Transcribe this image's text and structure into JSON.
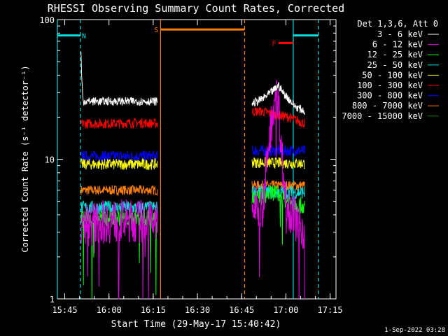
{
  "chart_data": {
    "type": "line",
    "title": "RHESSI Observing Summary Count Rates, Corrected",
    "xlabel": "Start Time (29-May-17 15:40:42)",
    "ylabel": "Corrected Count Rate (s⁻¹ detector⁻¹)",
    "footer": "1-Sep-2022 03:28",
    "yscale": "log",
    "ylim": [
      1,
      100
    ],
    "xlim_min": [
      42.5,
      137
    ],
    "x_unit": "minutes after 15:00 on 29-May-17",
    "yticks": [
      {
        "v": 1,
        "label": "1"
      },
      {
        "v": 10,
        "label": "10"
      },
      {
        "v": 100,
        "label": "100"
      }
    ],
    "xticks": [
      {
        "v": 45,
        "label": "15:45"
      },
      {
        "v": 60,
        "label": "16:00"
      },
      {
        "v": 75,
        "label": "16:15"
      },
      {
        "v": 90,
        "label": "16:30"
      },
      {
        "v": 105,
        "label": "16:45"
      },
      {
        "v": 120,
        "label": "17:00"
      },
      {
        "v": 135,
        "label": "17:15"
      }
    ],
    "legend": {
      "header": "Det 1,3,6, Att 0",
      "position": "right"
    },
    "series": [
      {
        "name": "3 - 6 keV",
        "color": "#000000",
        "level": 25.5,
        "jitter": 0.03,
        "segs": [
          [
            50.5,
            76.5
          ],
          [
            108.5,
            126.5
          ]
        ],
        "points": [
          [
            50.5,
            60
          ],
          [
            50.7,
            40
          ],
          [
            51.2,
            26
          ],
          [
            60,
            26
          ],
          [
            70,
            26
          ],
          [
            76.5,
            26
          ],
          [
            108.5,
            25
          ],
          [
            112,
            27
          ],
          [
            114,
            29
          ],
          [
            116.5,
            32
          ],
          [
            117.5,
            34
          ],
          [
            119,
            30
          ],
          [
            121,
            27
          ],
          [
            123,
            24
          ],
          [
            126.5,
            22
          ]
        ]
      },
      {
        "name": "6 - 12 keV",
        "color": "#e000e0",
        "level": 3.5,
        "jitter": 0.16,
        "spikes": true,
        "segs": [
          [
            50.5,
            76.5
          ],
          [
            108.5,
            126.5
          ]
        ],
        "points": [
          [
            50.5,
            2
          ],
          [
            51,
            3.4
          ],
          [
            60,
            3.6
          ],
          [
            70,
            3.6
          ],
          [
            76.5,
            3.5
          ],
          [
            108.5,
            4.5
          ],
          [
            112,
            4.5
          ],
          [
            113,
            7
          ],
          [
            115,
            18
          ],
          [
            116.5,
            30
          ],
          [
            117.5,
            25
          ],
          [
            118.5,
            12
          ],
          [
            119.5,
            6
          ],
          [
            121,
            4.5
          ],
          [
            124,
            3.5
          ],
          [
            126.5,
            3.1
          ]
        ]
      },
      {
        "name": "12 - 25 keV",
        "color": "#00ff00",
        "level": 3.8,
        "jitter": 0.06,
        "spikes": true,
        "segs": [
          [
            50.5,
            76.5
          ],
          [
            108.5,
            126.5
          ]
        ],
        "points": [
          [
            50.5,
            3.8
          ],
          [
            60,
            3.8
          ],
          [
            70,
            3.8
          ],
          [
            76.5,
            3.8
          ],
          [
            108.5,
            5.2
          ],
          [
            112,
            5.4
          ],
          [
            116,
            5.8
          ],
          [
            119,
            5.2
          ],
          [
            123,
            4.8
          ],
          [
            126.5,
            4.6
          ]
        ]
      },
      {
        "name": "25 - 50 keV",
        "color": "#00e0e0",
        "level": 4.5,
        "jitter": 0.05,
        "segs": [
          [
            50.5,
            76.5
          ],
          [
            108.5,
            126.5
          ]
        ],
        "points": [
          [
            50.5,
            4.5
          ],
          [
            76.5,
            4.5
          ],
          [
            108.5,
            5.8
          ],
          [
            126.5,
            5.8
          ]
        ]
      },
      {
        "name": "50 - 100 keV",
        "color": "#ffff00",
        "level": 9.2,
        "jitter": 0.04,
        "segs": [
          [
            50.5,
            76.5
          ],
          [
            108.5,
            126.5
          ]
        ],
        "points": [
          [
            50.5,
            9.2
          ],
          [
            76.5,
            9.2
          ],
          [
            108.5,
            9.5
          ],
          [
            126.5,
            9.3
          ]
        ]
      },
      {
        "name": "100 - 300 keV",
        "color": "#ff0000",
        "level": 18,
        "jitter": 0.035,
        "segs": [
          [
            50.5,
            76.5
          ],
          [
            108.5,
            126.5
          ]
        ],
        "points": [
          [
            50.5,
            18
          ],
          [
            60,
            18
          ],
          [
            70,
            18.2
          ],
          [
            76.5,
            18
          ],
          [
            108.5,
            22
          ],
          [
            112,
            22
          ],
          [
            116,
            21
          ],
          [
            121,
            20
          ],
          [
            126.5,
            18
          ]
        ]
      },
      {
        "name": "300 - 800 keV",
        "color": "#0000ff",
        "level": 10.5,
        "jitter": 0.04,
        "segs": [
          [
            50.5,
            76.5
          ],
          [
            108.5,
            126.5
          ]
        ],
        "points": [
          [
            50.5,
            10.5
          ],
          [
            76.5,
            10.5
          ],
          [
            108.5,
            11.5
          ],
          [
            126.5,
            11.5
          ]
        ]
      },
      {
        "name": "800 - 7000 keV",
        "color": "#ff7f00",
        "level": 6,
        "jitter": 0.035,
        "segs": [
          [
            50.5,
            76.5
          ],
          [
            108.5,
            126.5
          ]
        ],
        "points": [
          [
            50.5,
            6
          ],
          [
            76.5,
            6
          ],
          [
            108.5,
            6.5
          ],
          [
            126.5,
            6.5
          ]
        ]
      },
      {
        "name": "7000 - 15000 keV",
        "color": "#008000",
        "level": 5,
        "jitter": 0.02,
        "segs": [
          [
            50.5,
            76.5
          ],
          [
            108.5,
            126.5
          ]
        ],
        "points": [
          [
            50.5,
            5
          ],
          [
            76.5,
            5
          ],
          [
            108.5,
            5.2
          ],
          [
            126.5,
            5.2
          ]
        ]
      }
    ],
    "intervals": [
      {
        "label": "N",
        "color": "#00e0e0",
        "start": 42.5,
        "end": 50.3,
        "label_x": 51.5,
        "y": 77
      },
      {
        "label": "S",
        "color": "#ff7f00",
        "start": 77.5,
        "end": 106,
        "label_x": 76,
        "y": 85
      },
      {
        "label": "F",
        "color": "#ff0000",
        "start": 117.5,
        "end": 122.5,
        "label_x": 116,
        "y": 68
      },
      {
        "label": "",
        "color": "#00e0e0",
        "start": 122.5,
        "end": 131,
        "label_x": 0,
        "y": 77
      }
    ],
    "markers": [
      {
        "x": 42.5,
        "color": "#00e0e0",
        "style": "solid"
      },
      {
        "x": 50.3,
        "color": "#00e0e0",
        "style": "dashed"
      },
      {
        "x": 77.5,
        "color": "#ff7f00",
        "style": "solid"
      },
      {
        "x": 106,
        "color": "#ff7f00",
        "style": "dashed"
      },
      {
        "x": 122.5,
        "color": "#00e0e0",
        "style": "solid"
      },
      {
        "x": 131,
        "color": "#00e0e0",
        "style": "dashed"
      }
    ]
  }
}
